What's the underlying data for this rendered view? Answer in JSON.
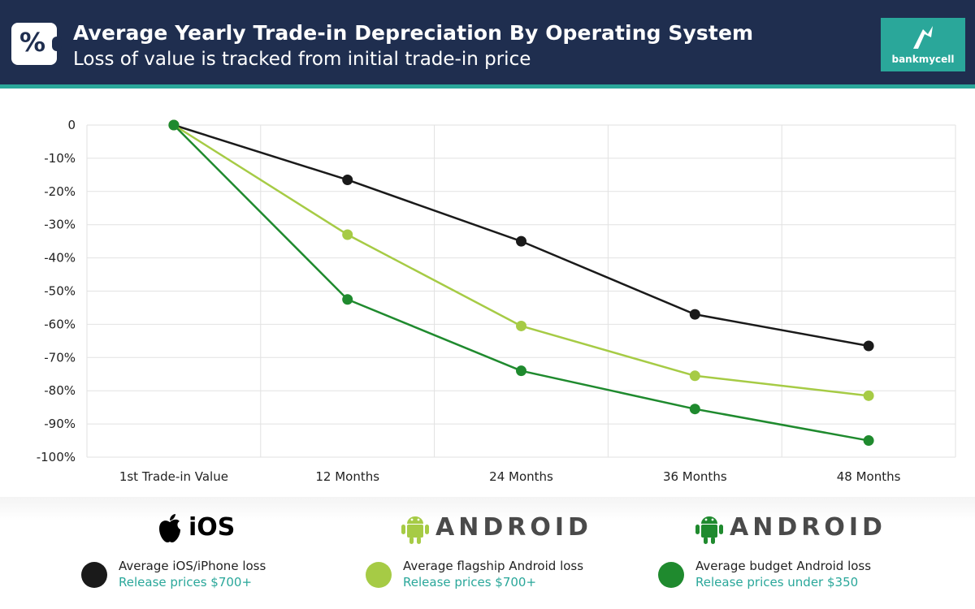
{
  "header": {
    "title": "Average Yearly Trade-in Depreciation By Operating System",
    "subtitle": "Loss of value is tracked from initial trade-in price",
    "badge_symbol": "%",
    "brand_name": "bankmycell",
    "background_color": "#1f2e4f",
    "accent_color": "#2aa79a"
  },
  "chart_data": {
    "type": "line",
    "categories": [
      "1st Trade-in Value",
      "12 Months",
      "24 Months",
      "36 Months",
      "48 Months"
    ],
    "ylim": [
      -100,
      0
    ],
    "y_ticks": [
      0,
      -10,
      -20,
      -30,
      -40,
      -50,
      -60,
      -70,
      -80,
      -90,
      -100
    ],
    "y_tick_labels": [
      "0",
      "-10%",
      "-20%",
      "-30%",
      "-40%",
      "-50%",
      "-60%",
      "-70%",
      "-80%",
      "-90%",
      "-100%"
    ],
    "grid": true,
    "legend_position": "bottom",
    "series": [
      {
        "name": "Average iOS/iPhone loss",
        "color": "#1a1a1a",
        "values": [
          0,
          -16.5,
          -35,
          -57,
          -66.5
        ]
      },
      {
        "name": "Average flagship Android loss",
        "color": "#a6cb45",
        "values": [
          0,
          -33,
          -60.5,
          -75.5,
          -81.5
        ]
      },
      {
        "name": "Average budget Android loss",
        "color": "#1f8a2e",
        "values": [
          0,
          -52.5,
          -74,
          -85.5,
          -95
        ]
      }
    ]
  },
  "legend": {
    "ios_label": "iOS",
    "android_label": "ANDROID",
    "items": [
      {
        "name": "Average iOS/iPhone loss",
        "price": "Release prices $700+",
        "color": "#1a1a1a"
      },
      {
        "name": "Average flagship Android loss",
        "price": "Release prices $700+",
        "color": "#a6cb45"
      },
      {
        "name": "Average budget Android loss",
        "price": "Release prices under $350",
        "color": "#1f8a2e"
      }
    ],
    "icons": [
      "apple-icon",
      "android-robot-icon"
    ]
  }
}
